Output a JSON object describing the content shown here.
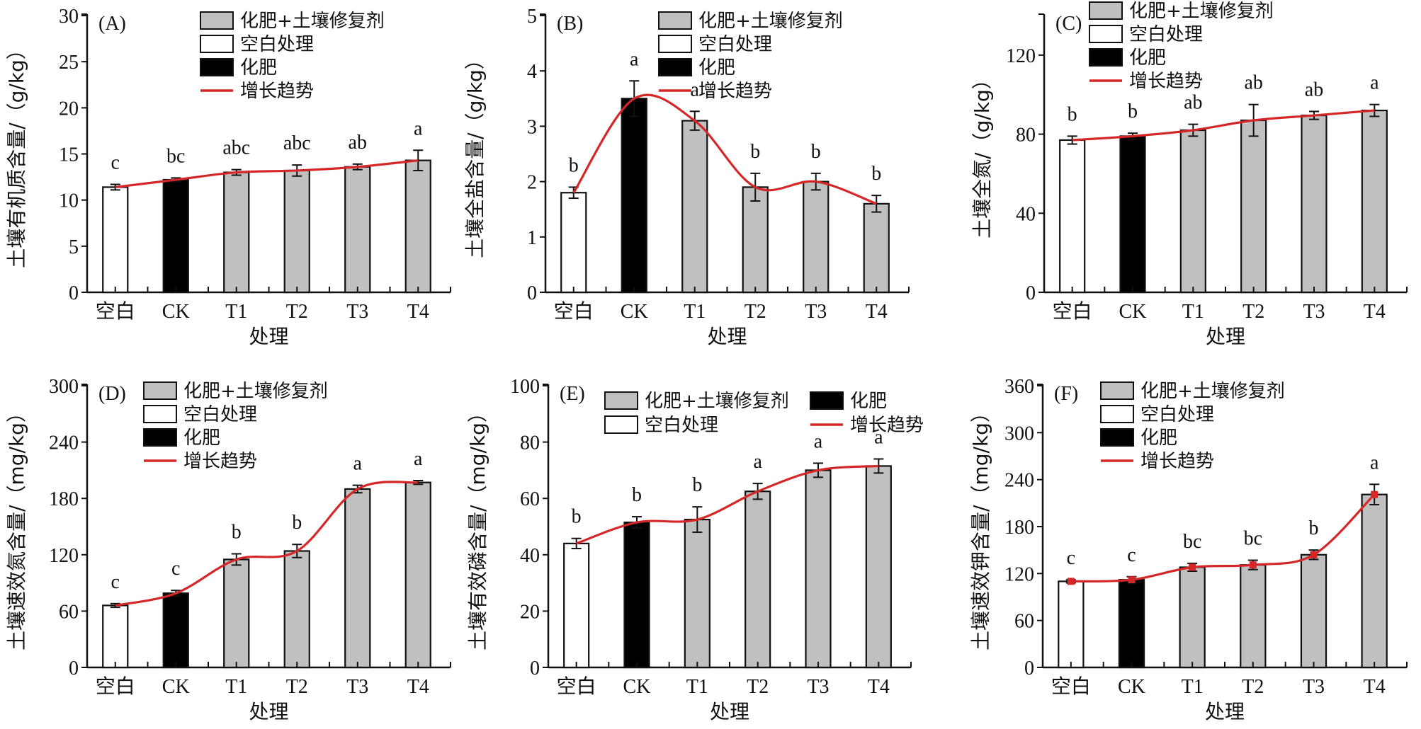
{
  "legend_labels": {
    "remedy": "化肥+土壤修复剂",
    "blank": "空白处理",
    "fert": "化肥",
    "trend": "增长趋势"
  },
  "colors": {
    "remedy": "#c0c0c0",
    "blank": "#ffffff",
    "fert": "#000000",
    "trend": "#d62728",
    "axis": "#111111"
  },
  "chart_data": [
    {
      "type": "bar",
      "panel": "(A)",
      "categories": [
        "空白",
        "CK",
        "T1",
        "T2",
        "T3",
        "T4"
      ],
      "fill_types": [
        "blank",
        "fert",
        "remedy",
        "remedy",
        "remedy",
        "remedy"
      ],
      "values": [
        11.4,
        12.2,
        13.0,
        13.2,
        13.6,
        14.3
      ],
      "errors": [
        0.3,
        0.2,
        0.3,
        0.6,
        0.3,
        1.1
      ],
      "letters": [
        "c",
        "bc",
        "abc",
        "abc",
        "ab",
        "a"
      ],
      "xlabel": "处理",
      "ylabel": "土壤有机质含量/（g/kg）",
      "ylim": [
        0,
        30
      ],
      "yticks": [
        0,
        5,
        10,
        15,
        20,
        25,
        30
      ],
      "legend_layout": "column",
      "trend": "smooth line through bar means"
    },
    {
      "type": "bar",
      "panel": "(B)",
      "categories": [
        "空白",
        "CK",
        "T1",
        "T2",
        "T3",
        "T4"
      ],
      "fill_types": [
        "blank",
        "fert",
        "remedy",
        "remedy",
        "remedy",
        "remedy"
      ],
      "values": [
        1.8,
        3.5,
        3.1,
        1.9,
        2.0,
        1.6
      ],
      "errors": [
        0.1,
        0.32,
        0.17,
        0.25,
        0.15,
        0.15
      ],
      "letters": [
        "b",
        "a",
        "a",
        "b",
        "b",
        "b"
      ],
      "xlabel": "处理",
      "ylabel": "土壤全盐含量/（g/kg）",
      "ylim": [
        0,
        5
      ],
      "yticks": [
        0,
        1,
        2,
        3,
        4,
        5
      ],
      "legend_layout": "column",
      "trend": "smooth line through bar means"
    },
    {
      "type": "bar",
      "panel": "(C)",
      "categories": [
        "空白",
        "CK",
        "T1",
        "T2",
        "T3",
        "T4"
      ],
      "fill_types": [
        "blank",
        "fert",
        "remedy",
        "remedy",
        "remedy",
        "remedy"
      ],
      "values": [
        77,
        79,
        82,
        87,
        89.5,
        92
      ],
      "errors": [
        2,
        1.5,
        3,
        8,
        2,
        3
      ],
      "letters": [
        "b",
        "b",
        "ab",
        "ab",
        "ab",
        "a"
      ],
      "xlabel": "处理",
      "ylabel": "土壤全氮/（g/kg）",
      "ylim": [
        0,
        140
      ],
      "yticks": [
        0,
        40,
        80,
        120
      ],
      "legend_layout": "column",
      "trend": "smooth line through bar means"
    },
    {
      "type": "bar",
      "panel": "(D)",
      "categories": [
        "空白",
        "CK",
        "T1",
        "T2",
        "T3",
        "T4"
      ],
      "fill_types": [
        "blank",
        "fert",
        "remedy",
        "remedy",
        "remedy",
        "remedy"
      ],
      "values": [
        66,
        79,
        115,
        124,
        190,
        197
      ],
      "errors": [
        2,
        3,
        6,
        7,
        4,
        2
      ],
      "letters": [
        "c",
        "c",
        "b",
        "b",
        "a",
        "a"
      ],
      "xlabel": "处理",
      "ylabel": "土壤速效氮含量/（mg/kg）",
      "ylim": [
        0,
        300
      ],
      "yticks": [
        0,
        60,
        120,
        180,
        240,
        300
      ],
      "legend_layout": "column",
      "trend": "smooth line through bar means"
    },
    {
      "type": "bar",
      "panel": "(E)",
      "categories": [
        "空白",
        "CK",
        "T1",
        "T2",
        "T3",
        "T4"
      ],
      "fill_types": [
        "blank",
        "fert",
        "remedy",
        "remedy",
        "remedy",
        "remedy"
      ],
      "values": [
        44,
        51.5,
        52.5,
        62.5,
        70,
        71.5
      ],
      "errors": [
        1.8,
        2,
        4.5,
        2.8,
        2.5,
        2.5
      ],
      "letters": [
        "b",
        "b",
        "b",
        "a",
        "a",
        "a"
      ],
      "xlabel": "处理",
      "ylabel": "土壤有效磷含量/（mg/kg）",
      "ylim": [
        0,
        100
      ],
      "yticks": [
        0,
        20,
        40,
        60,
        80,
        100
      ],
      "legend_layout": "two-column",
      "trend": "smooth line through bar means"
    },
    {
      "type": "bar",
      "panel": "(F)",
      "categories": [
        "空白",
        "CK",
        "T1",
        "T2",
        "T3",
        "T4"
      ],
      "fill_types": [
        "blank",
        "fert",
        "remedy",
        "remedy",
        "remedy",
        "remedy"
      ],
      "values": [
        110,
        112,
        128,
        131,
        144,
        221
      ],
      "errors": [
        2,
        4,
        5,
        6,
        6,
        13
      ],
      "letters": [
        "c",
        "c",
        "bc",
        "bc",
        "b",
        "a"
      ],
      "xlabel": "处理",
      "ylabel": "土壤速效钾含量/（mg/kg）",
      "ylim": [
        0,
        360
      ],
      "yticks": [
        0,
        60,
        120,
        180,
        240,
        300,
        360
      ],
      "legend_layout": "column",
      "trend": "smooth line through bar means with markers"
    }
  ]
}
